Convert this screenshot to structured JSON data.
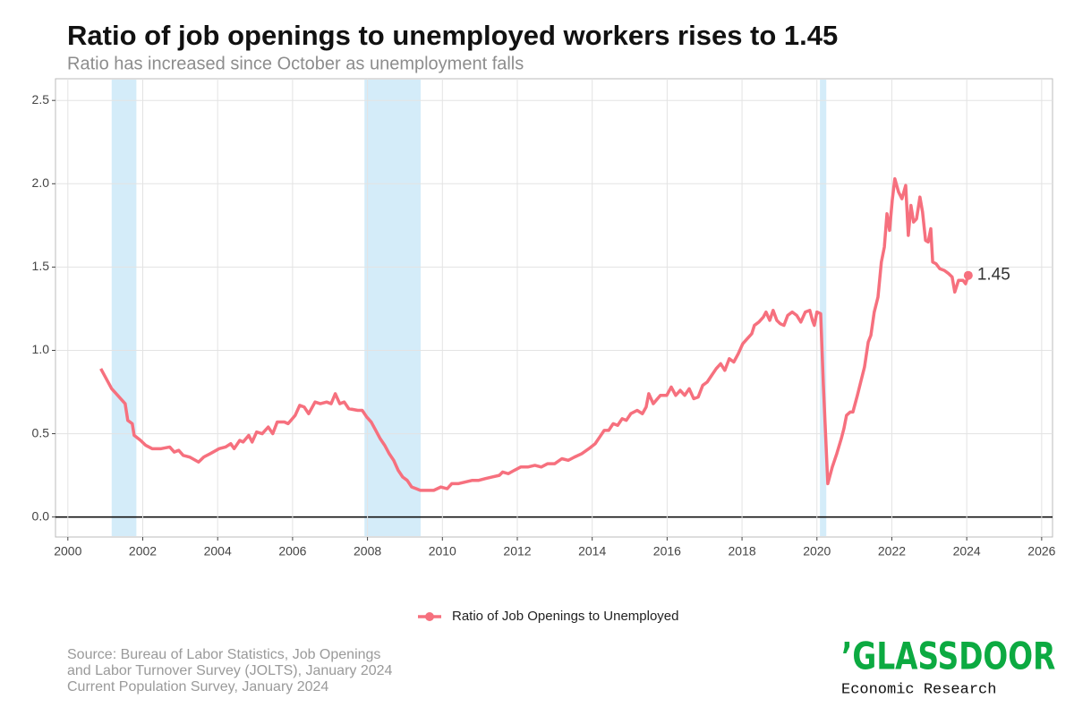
{
  "chart_data": {
    "type": "line",
    "title": "Ratio of job openings to unemployed workers rises to 1.45",
    "subtitle": "Ratio has increased since October as unemployment falls",
    "x": [
      2000.88,
      2001.17,
      2001.53,
      2001.6,
      2001.72,
      2001.77,
      2001.94,
      2002.08,
      2002.25,
      2002.49,
      2002.72,
      2002.84,
      2002.96,
      2003.08,
      2003.25,
      2003.49,
      2003.63,
      2003.8,
      2004.04,
      2004.21,
      2004.35,
      2004.44,
      2004.59,
      2004.68,
      2004.83,
      2004.92,
      2005.04,
      2005.19,
      2005.35,
      2005.47,
      2005.59,
      2005.78,
      2005.88,
      2006.07,
      2006.19,
      2006.31,
      2006.43,
      2006.6,
      2006.74,
      2006.91,
      2007.03,
      2007.14,
      2007.26,
      2007.38,
      2007.5,
      2007.74,
      2007.86,
      2007.98,
      2008.1,
      2008.22,
      2008.34,
      2008.46,
      2008.58,
      2008.7,
      2008.82,
      2008.94,
      2009.06,
      2009.18,
      2009.3,
      2009.41,
      2009.61,
      2009.77,
      2009.96,
      2010.13,
      2010.25,
      2010.42,
      2010.61,
      2010.8,
      2010.97,
      2011.14,
      2011.33,
      2011.52,
      2011.61,
      2011.76,
      2011.92,
      2012.09,
      2012.28,
      2012.47,
      2012.64,
      2012.81,
      2013.0,
      2013.19,
      2013.36,
      2013.53,
      2013.72,
      2013.91,
      2014.08,
      2014.2,
      2014.32,
      2014.44,
      2014.56,
      2014.68,
      2014.8,
      2014.91,
      2015.03,
      2015.2,
      2015.34,
      2015.44,
      2015.51,
      2015.63,
      2015.82,
      2015.99,
      2016.11,
      2016.23,
      2016.35,
      2016.47,
      2016.59,
      2016.71,
      2016.83,
      2016.95,
      2017.07,
      2017.19,
      2017.31,
      2017.43,
      2017.54,
      2017.66,
      2017.78,
      2017.9,
      2018.02,
      2018.14,
      2018.26,
      2018.33,
      2018.45,
      2018.57,
      2018.64,
      2018.74,
      2018.83,
      2018.93,
      2019.02,
      2019.12,
      2019.22,
      2019.34,
      2019.46,
      2019.57,
      2019.69,
      2019.81,
      2019.88,
      2019.93,
      2020.0,
      2020.1,
      2020.17,
      2020.29,
      2020.41,
      2020.53,
      2020.65,
      2020.72,
      2020.79,
      2020.89,
      2020.96,
      2021.08,
      2021.18,
      2021.27,
      2021.37,
      2021.44,
      2021.53,
      2021.63,
      2021.72,
      2021.8,
      2021.87,
      2021.94,
      2022.01,
      2022.08,
      2022.18,
      2022.27,
      2022.37,
      2022.44,
      2022.51,
      2022.58,
      2022.66,
      2022.75,
      2022.82,
      2022.9,
      2022.97,
      2023.04,
      2023.09,
      2023.18,
      2023.28,
      2023.4,
      2023.52,
      2023.61,
      2023.68,
      2023.78,
      2023.9,
      2023.97,
      2024.04
    ],
    "series": [
      {
        "name": "Ratio of Job Openings to Unemployed",
        "color": "#f6707e",
        "values": [
          0.89,
          0.77,
          0.68,
          0.58,
          0.56,
          0.49,
          0.46,
          0.43,
          0.41,
          0.41,
          0.42,
          0.39,
          0.4,
          0.37,
          0.36,
          0.33,
          0.36,
          0.38,
          0.41,
          0.42,
          0.44,
          0.41,
          0.46,
          0.45,
          0.49,
          0.45,
          0.51,
          0.5,
          0.54,
          0.5,
          0.57,
          0.57,
          0.56,
          0.61,
          0.67,
          0.66,
          0.62,
          0.69,
          0.68,
          0.69,
          0.68,
          0.74,
          0.68,
          0.69,
          0.65,
          0.64,
          0.64,
          0.6,
          0.57,
          0.52,
          0.47,
          0.43,
          0.38,
          0.34,
          0.28,
          0.24,
          0.22,
          0.18,
          0.17,
          0.16,
          0.16,
          0.16,
          0.18,
          0.17,
          0.2,
          0.2,
          0.21,
          0.22,
          0.22,
          0.23,
          0.24,
          0.25,
          0.27,
          0.26,
          0.28,
          0.3,
          0.3,
          0.31,
          0.3,
          0.32,
          0.32,
          0.35,
          0.34,
          0.36,
          0.38,
          0.41,
          0.44,
          0.48,
          0.52,
          0.52,
          0.56,
          0.55,
          0.59,
          0.58,
          0.62,
          0.64,
          0.62,
          0.66,
          0.74,
          0.68,
          0.73,
          0.73,
          0.78,
          0.73,
          0.76,
          0.73,
          0.77,
          0.71,
          0.72,
          0.79,
          0.81,
          0.85,
          0.89,
          0.92,
          0.88,
          0.95,
          0.93,
          0.98,
          1.04,
          1.07,
          1.1,
          1.15,
          1.17,
          1.2,
          1.23,
          1.18,
          1.24,
          1.18,
          1.16,
          1.15,
          1.21,
          1.23,
          1.21,
          1.17,
          1.23,
          1.24,
          1.18,
          1.15,
          1.23,
          1.22,
          0.8,
          0.2,
          0.3,
          0.38,
          0.47,
          0.53,
          0.61,
          0.63,
          0.63,
          0.73,
          0.82,
          0.9,
          1.05,
          1.09,
          1.23,
          1.32,
          1.53,
          1.62,
          1.82,
          1.72,
          1.9,
          2.03,
          1.95,
          1.91,
          1.99,
          1.69,
          1.87,
          1.77,
          1.79,
          1.92,
          1.83,
          1.66,
          1.65,
          1.73,
          1.53,
          1.52,
          1.49,
          1.48,
          1.46,
          1.44,
          1.35,
          1.42,
          1.42,
          1.4,
          1.45
        ]
      }
    ],
    "recessions": [
      [
        2001.17,
        2001.83
      ],
      [
        2007.92,
        2009.42
      ],
      [
        2020.08,
        2020.25
      ]
    ],
    "recession_color": "#d4ecf9",
    "xlim": [
      1999.67,
      2026.29
    ],
    "xticks": [
      2000,
      2002,
      2004,
      2006,
      2008,
      2010,
      2012,
      2014,
      2016,
      2018,
      2020,
      2022,
      2024,
      2026
    ],
    "ylim": [
      -0.12,
      2.63
    ],
    "yticks": [
      {
        "value": 0,
        "label": "0.0"
      },
      0.5,
      {
        "value": 1,
        "label": "1.0"
      },
      1.5,
      {
        "value": 2,
        "label": "2.0"
      },
      2.5
    ],
    "grid": true,
    "legend": "bottom",
    "source": [
      "Source: Bureau of Labor Statistics, Job Openings",
      "and Labor Turnover Survey (JOLTS), January 2024",
      "Current Population Survey, January 2024"
    ],
    "brand": "’GLASSDOOR",
    "brand_sub": "Economic Research"
  }
}
